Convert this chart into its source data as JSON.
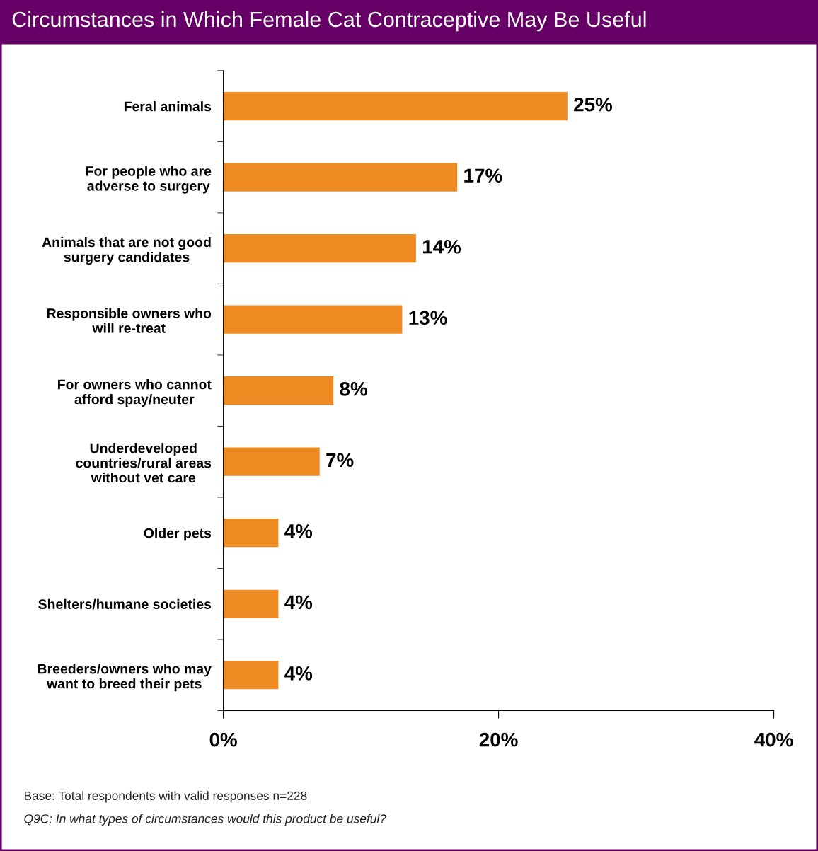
{
  "chart_data": {
    "type": "bar",
    "orientation": "horizontal",
    "title": "Circumstances in Which Female Cat Contraceptive May Be Useful",
    "categories": [
      "Feral animals",
      "For people who are\nadverse to surgery",
      "Animals that are not good\nsurgery candidates",
      "Responsible owners who\nwill re-treat",
      "For owners who cannot\nafford spay/neuter",
      "Underdeveloped\ncountries/rural areas\nwithout vet care",
      "Older pets",
      "Shelters/humane societies",
      "Breeders/owners who may\nwant to breed their pets"
    ],
    "values": [
      25,
      17,
      14,
      13,
      8,
      7,
      4,
      4,
      4
    ],
    "value_labels": [
      "25%",
      "17%",
      "14%",
      "13%",
      "8%",
      "7%",
      "4%",
      "4%",
      "4%"
    ],
    "color": "#ee8a22",
    "xlim": [
      0,
      40
    ],
    "xticks": [
      {
        "value": 0,
        "label": "0%"
      },
      {
        "value": 20,
        "label": "20%"
      },
      {
        "value": 40,
        "label": "40%"
      }
    ],
    "grid": false,
    "annotations": [
      "Base: Total respondents with valid responses n=228",
      "Q9C: In what types of circumstances would this product be useful?"
    ]
  }
}
